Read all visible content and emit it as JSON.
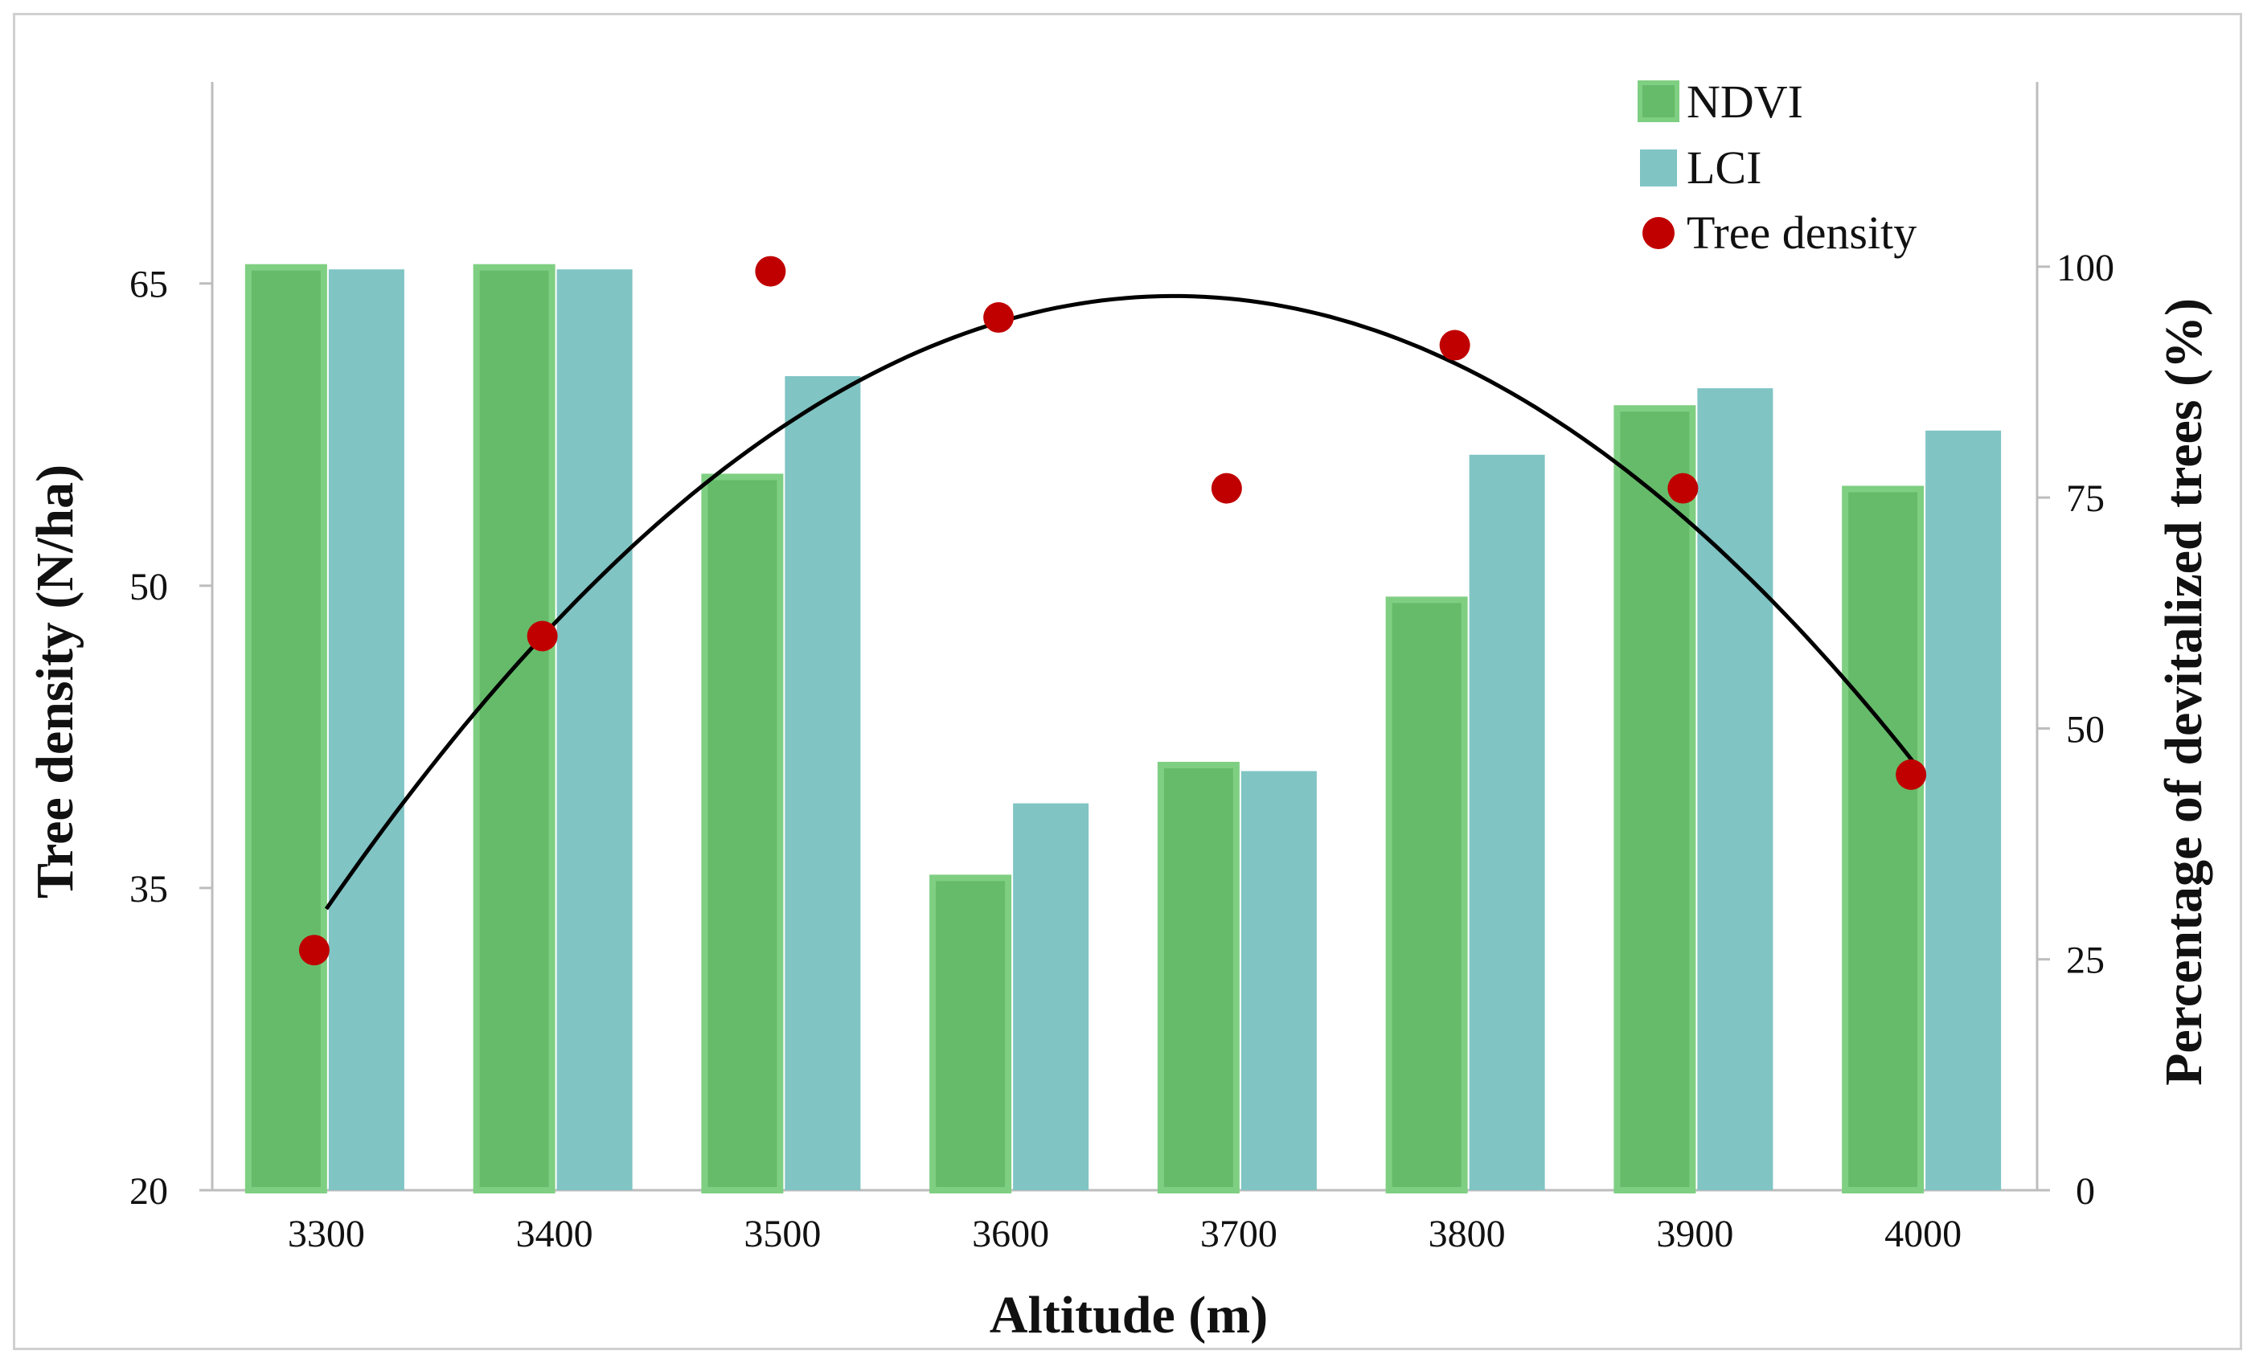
{
  "chart_data": {
    "type": "bar",
    "categories": [
      "3300",
      "3400",
      "3500",
      "3600",
      "3700",
      "3800",
      "3900",
      "4000"
    ],
    "series": [
      {
        "name": "NDVI",
        "axis": "left",
        "values": [
          65.8,
          65.8,
          55.4,
          35.5,
          41.1,
          49.3,
          58.8,
          54.8
        ],
        "color": "#66bb6a"
      },
      {
        "name": "LCI",
        "axis": "left",
        "values": [
          65.7,
          65.7,
          60.4,
          39.2,
          40.8,
          56.5,
          59.8,
          57.7
        ],
        "color": "#80c4c4"
      },
      {
        "name": "Tree density",
        "axis": "right",
        "type": "scatter",
        "values": [
          26,
          60,
          99.5,
          94.5,
          76,
          91.5,
          76,
          45
        ],
        "color": "#c00000"
      }
    ],
    "trendline": {
      "type": "polynomial",
      "color": "#000000",
      "values": [
        30,
        62,
        83,
        94,
        96,
        89,
        72,
        45
      ]
    },
    "xlabel": "Altitude (m)",
    "ylabel": "Tree density (N/ha)",
    "y2label": "Percentage of devitalized trees (%)",
    "ylim": [
      20,
      75
    ],
    "y2lim": [
      0,
      120
    ],
    "yticks": [
      "20",
      "35",
      "50",
      "65"
    ],
    "y2ticks": [
      "0",
      "25",
      "50",
      "75",
      "100"
    ],
    "legend_position": "top-right"
  }
}
